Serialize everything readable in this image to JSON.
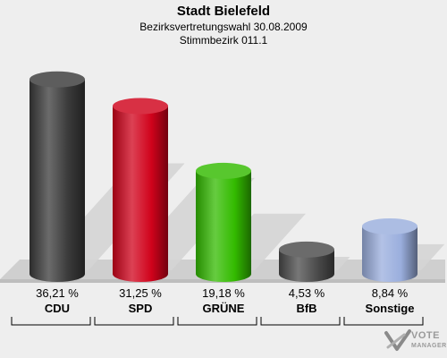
{
  "header": {
    "title": "Stadt Bielefeld",
    "subtitle1": "Bezirksvertretungswahl 30.08.2009",
    "subtitle2": "Stimmbezirk 011.1"
  },
  "chart_data": {
    "type": "bar",
    "categories": [
      "CDU",
      "SPD",
      "GRÜNE",
      "BfB",
      "Sonstige"
    ],
    "values": [
      36.21,
      31.25,
      19.18,
      4.53,
      8.84
    ],
    "value_labels": [
      "36,21 %",
      "31,25 %",
      "19,18 %",
      "4,53 %",
      "8,84 %"
    ],
    "colors": [
      "#3a3a3a",
      "#d0021b",
      "#33bb00",
      "#4a4a4a",
      "#9aaedd"
    ],
    "title": "Stadt Bielefeld",
    "xlabel": "",
    "ylabel": "",
    "ylim": [
      0,
      40
    ],
    "grid": false,
    "legend": "none"
  },
  "watermark": {
    "line1": "VOTE",
    "line2": "MANAGER"
  }
}
